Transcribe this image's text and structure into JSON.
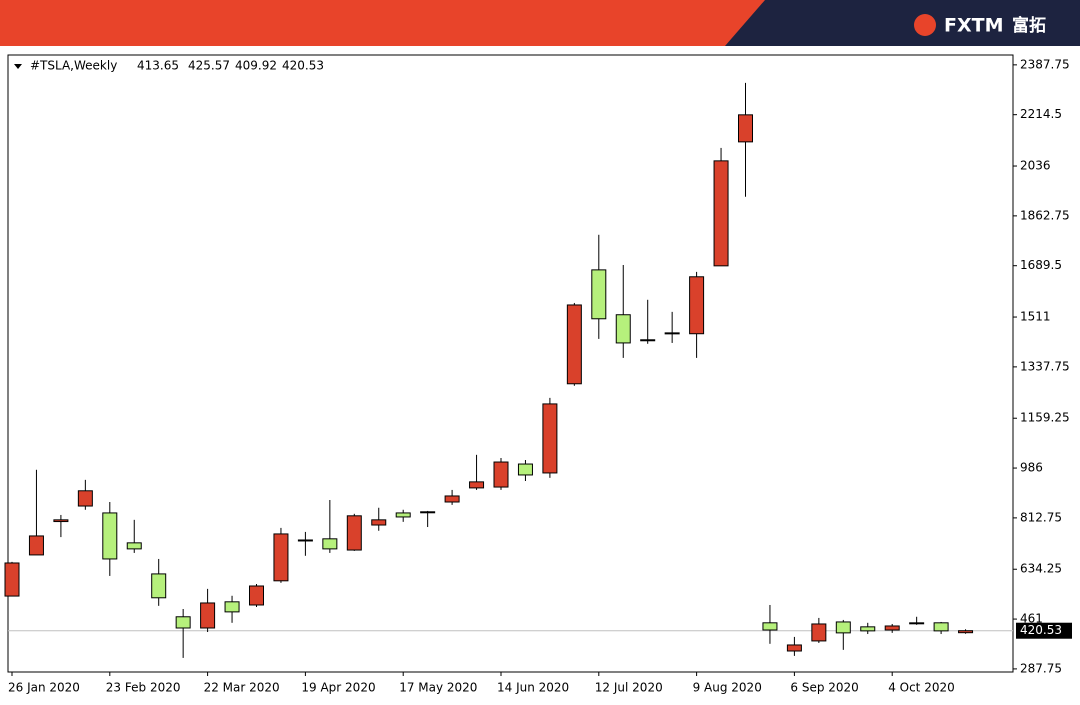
{
  "brand": "FXTM",
  "brand_cn": "富拓",
  "chart_data": {
    "type": "candlestick",
    "title": "#TSLA,Weekly",
    "categories": [
      "26 Jan 2020",
      null,
      null,
      null,
      "23 Feb 2020",
      null,
      null,
      null,
      "22 Mar 2020",
      null,
      null,
      null,
      "19 Apr 2020",
      null,
      null,
      null,
      "17 May 2020",
      null,
      null,
      null,
      "14 Jun 2020",
      null,
      null,
      null,
      "12 Jul 2020",
      null,
      null,
      null,
      "9 Aug 2020",
      null,
      null,
      null,
      "6 Sep 2020",
      null,
      null,
      null,
      "4 Oct 2020",
      null,
      null,
      null
    ],
    "open": [
      541,
      684,
      800,
      854,
      830,
      726,
      618,
      469,
      430,
      521,
      510,
      594,
      736,
      740,
      701,
      788,
      830,
      834,
      868,
      917,
      920,
      1000,
      969,
      1279,
      1675,
      1519,
      1432,
      1456,
      1453,
      1689,
      2120,
      448,
      350,
      385,
      451,
      434,
      423,
      448,
      448,
      413.65
    ],
    "high": [
      660,
      980,
      823,
      945,
      868,
      806,
      670,
      496,
      566,
      542,
      583,
      778,
      764,
      875,
      827,
      848,
      841,
      837,
      910,
      1032,
      1021,
      1014,
      1230,
      1560,
      1797,
      1692,
      1571,
      1529,
      1668,
      2099,
      2325,
      510,
      399,
      465,
      458,
      448,
      444,
      469,
      451,
      425.57
    ],
    "low": [
      540,
      684,
      746,
      841,
      611,
      691,
      507,
      326,
      416,
      448,
      503,
      587,
      681,
      691,
      698,
      768,
      799,
      781,
      858,
      910,
      910,
      941,
      952,
      1272,
      1435,
      1369,
      1418,
      1421,
      1369,
      1689,
      1929,
      375,
      333,
      378,
      354,
      409,
      413,
      441,
      409,
      409.92
    ],
    "close": [
      656,
      750,
      806,
      907,
      670,
      705,
      535,
      430,
      517,
      486,
      576,
      757,
      736,
      705,
      820,
      806,
      816,
      834,
      889,
      938,
      1007,
      962,
      1209,
      1553,
      1505,
      1421,
      1432,
      1456,
      1651,
      2054,
      2214,
      423,
      371,
      444,
      413,
      420,
      437,
      448,
      420,
      420.53
    ],
    "up_color": "#d9412b",
    "down_color": "#b6f07c",
    "doji_color": "#000000",
    "ylim": [
      277,
      2422
    ],
    "yticks": [
      287.75,
      461.0,
      634.25,
      812.75,
      986.0,
      1159.25,
      1337.75,
      1511.0,
      1689.5,
      1862.75,
      2036.0,
      2214.5,
      2387.75
    ]
  }
}
